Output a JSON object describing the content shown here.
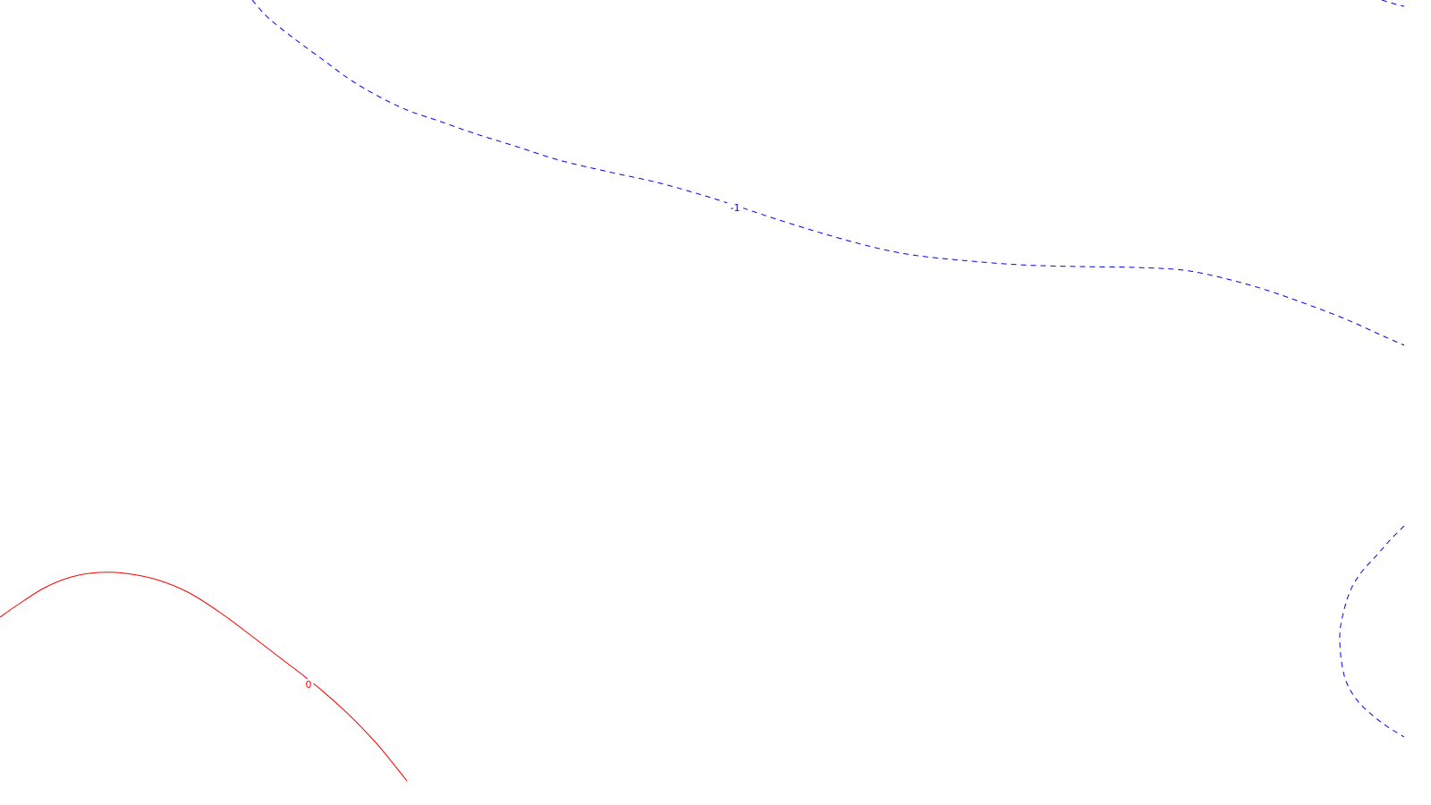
{
  "chart_data": {
    "type": "contour",
    "title": "",
    "xlabel": "",
    "ylabel": "",
    "grid": false,
    "contours": [
      {
        "level_label": "0",
        "color": "#ff0000",
        "line_style": "solid",
        "segments": [
          [
            [
              0,
              690
            ],
            [
              20,
              676
            ],
            [
              50,
              657
            ],
            [
              80,
              645
            ],
            [
              110,
              640
            ],
            [
              140,
              641
            ],
            [
              175,
              648
            ],
            [
              210,
              662
            ],
            [
              245,
              684
            ],
            [
              280,
              710
            ],
            [
              310,
              733
            ],
            [
              335,
              752
            ],
            [
              345,
              760
            ],
            [
              360,
              772
            ],
            [
              390,
              799
            ],
            [
              420,
              830
            ],
            [
              443,
              858
            ],
            [
              455,
              873
            ]
          ]
        ]
      },
      {
        "level_label": "-1",
        "color": "#0000ff",
        "line_style": "dashed",
        "segments": [
          [
            [
              282,
              0
            ],
            [
              300,
              20
            ],
            [
              330,
              44
            ],
            [
              360,
              66
            ],
            [
              390,
              88
            ],
            [
              420,
              106
            ],
            [
              455,
              123
            ],
            [
              490,
              135
            ],
            [
              530,
              149
            ],
            [
              575,
              163
            ],
            [
              625,
              179
            ],
            [
              680,
              192
            ],
            [
              735,
              204
            ],
            [
              785,
              218
            ],
            [
              820,
              229
            ],
            [
              865,
              244
            ],
            [
              920,
              261
            ],
            [
              975,
              276
            ],
            [
              1020,
              285
            ],
            [
              1075,
              291
            ],
            [
              1140,
              296
            ],
            [
              1205,
              298
            ],
            [
              1270,
              299
            ],
            [
              1330,
              303
            ],
            [
              1395,
              318
            ],
            [
              1450,
              336
            ],
            [
              1505,
              357
            ],
            [
              1545,
              375
            ],
            [
              1570,
              386
            ]
          ],
          [
            [
              1545,
              0
            ],
            [
              1558,
              4
            ],
            [
              1570,
              7
            ]
          ],
          [
            [
              1570,
              588
            ],
            [
              1555,
              603
            ],
            [
              1540,
              620
            ],
            [
              1522,
              640
            ],
            [
              1510,
              660
            ],
            [
              1502,
              685
            ],
            [
              1498,
              710
            ],
            [
              1500,
              740
            ],
            [
              1506,
              764
            ],
            [
              1520,
              786
            ],
            [
              1545,
              808
            ],
            [
              1570,
              824
            ]
          ]
        ]
      }
    ],
    "labels": [
      {
        "text": "0",
        "x": 345,
        "y": 766,
        "color": "#ff0000"
      },
      {
        "text": "-1",
        "x": 822,
        "y": 233,
        "color": "#0000ff"
      }
    ]
  }
}
